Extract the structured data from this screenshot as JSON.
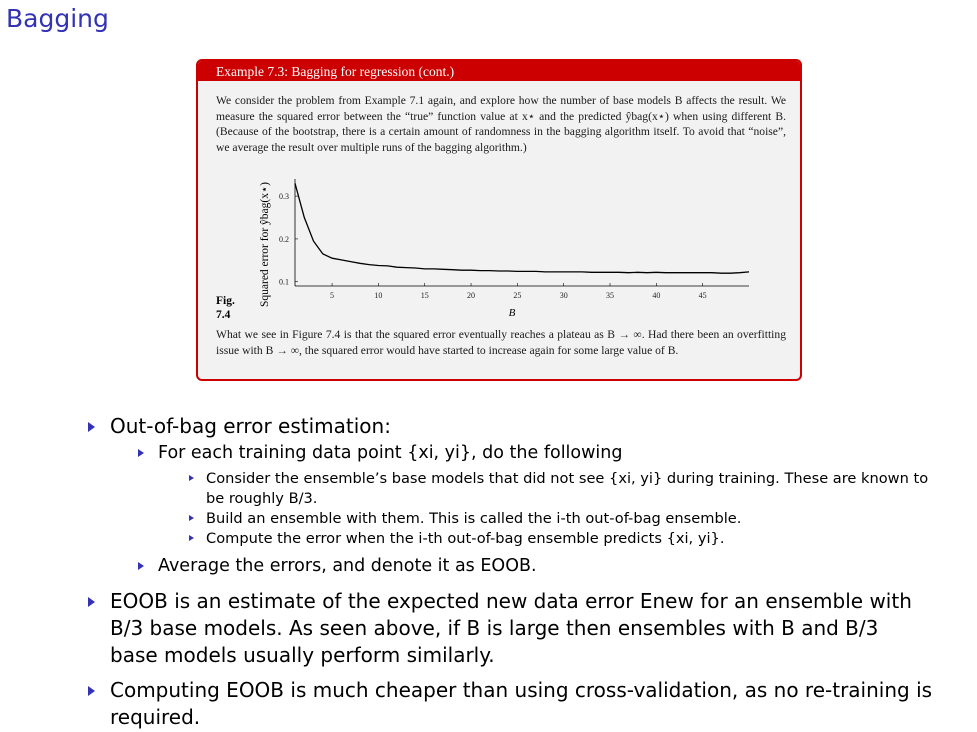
{
  "slide": {
    "title": "Bagging"
  },
  "example": {
    "header": "Example 7.3: Bagging for regression (cont.)",
    "intro": "We consider the problem from Example 7.1 again, and explore how the number of base models B affects the result. We measure the squared error between the “true” function value at x⋆ and the predicted ŷbag(x⋆) when using different B. (Because of the bootstrap, there is a certain amount of randomness in the bagging algorithm itself. To avoid that “noise”, we average the result over multiple runs of the bagging algorithm.)",
    "fig_label_1": "Fig.",
    "fig_label_2": "7.4",
    "conclusion": "What we see in Figure 7.4 is that the squared error eventually reaches a plateau as B → ∞. Had there been an overfitting issue with B → ∞, the squared error would have started to increase again for some large value of B."
  },
  "chart_data": {
    "type": "line",
    "xlabel": "B",
    "ylabel": "Squared error for ŷbag(x⋆)",
    "xticks": [
      5,
      10,
      15,
      20,
      25,
      30,
      35,
      40,
      45
    ],
    "yticks": [
      0.1,
      0.2,
      0.3
    ],
    "xlim": [
      1,
      50
    ],
    "ylim": [
      0.09,
      0.34
    ],
    "series": [
      {
        "x": [
          1,
          2,
          3,
          4,
          5,
          6,
          7,
          8,
          9,
          10,
          11,
          12,
          13,
          14,
          15,
          16,
          17,
          18,
          19,
          20,
          21,
          22,
          23,
          24,
          25,
          26,
          27,
          28,
          29,
          30,
          31,
          32,
          33,
          34,
          35,
          36,
          37,
          38,
          39,
          40,
          41,
          42,
          43,
          44,
          45,
          46,
          47,
          48,
          49,
          50
        ],
        "values": [
          0.33,
          0.25,
          0.195,
          0.165,
          0.155,
          0.151,
          0.147,
          0.143,
          0.14,
          0.138,
          0.137,
          0.134,
          0.133,
          0.132,
          0.13,
          0.13,
          0.129,
          0.128,
          0.127,
          0.127,
          0.126,
          0.126,
          0.125,
          0.125,
          0.124,
          0.124,
          0.124,
          0.123,
          0.123,
          0.123,
          0.123,
          0.123,
          0.122,
          0.122,
          0.122,
          0.122,
          0.121,
          0.122,
          0.121,
          0.122,
          0.121,
          0.121,
          0.121,
          0.121,
          0.121,
          0.121,
          0.12,
          0.12,
          0.121,
          0.123
        ]
      }
    ]
  },
  "bullets": {
    "oob_heading": "Out-of-bag error estimation:",
    "for_each": "For each training data point {xi, yi}, do the following",
    "consider": "Consider the ensemble’s base models that did not see {xi, yi} during training. These are known to be roughly B/3.",
    "build": "Build an ensemble with them. This is called the i-th out-of-bag ensemble.",
    "compute": "Compute the error when the i-th out-of-bag ensemble predicts {xi, yi}.",
    "average": "Average the errors, and denote it as EOOB.",
    "estimate": "EOOB is an estimate of the expected new data error Enew for an ensemble with B/3 base models. As seen above, if B is large then ensembles with B and B/3 base models usually perform similarly.",
    "cheaper": "Computing EOOB is much cheaper than using cross-validation, as no re-training is required."
  },
  "colors": {
    "title": "#3333b3",
    "bullet": "#3333b3",
    "box_border": "#cc0000",
    "box_bg": "#f2f2f2"
  }
}
